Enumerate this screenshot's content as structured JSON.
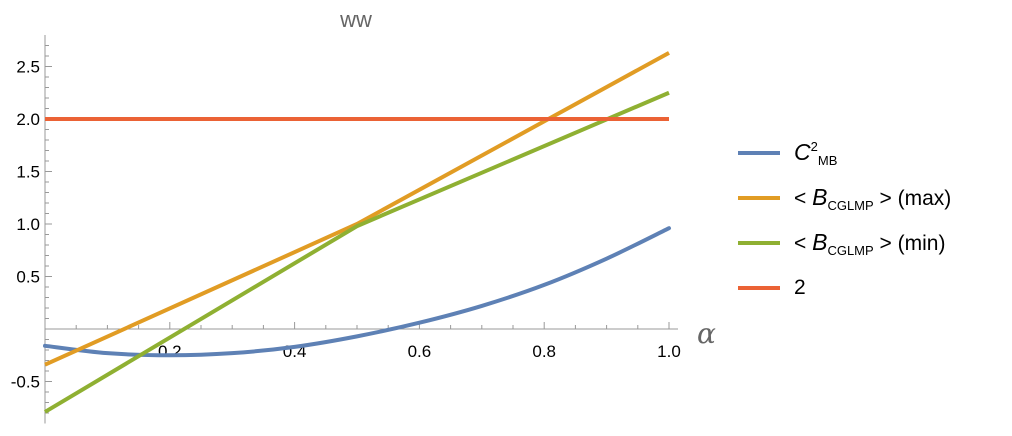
{
  "chart_data": {
    "type": "line",
    "title": "ww",
    "xlabel": "α",
    "ylabel": "",
    "xlim": [
      0,
      1.0
    ],
    "ylim": [
      -0.9,
      2.8
    ],
    "x_ticks": [
      "0.2",
      "0.4",
      "0.6",
      "0.8",
      "1.0"
    ],
    "y_ticks": [
      "-0.5",
      "0.5",
      "1.0",
      "1.5",
      "2.0",
      "2.5"
    ],
    "x_tick_values": [
      0.2,
      0.4,
      0.6,
      0.8,
      1.0
    ],
    "y_tick_values": [
      -0.5,
      0.5,
      1.0,
      1.5,
      2.0,
      2.5
    ],
    "series": [
      {
        "name": "C²MB",
        "color": "#5E81B5",
        "x": [
          0,
          0.1,
          0.2,
          0.3,
          0.4,
          0.5,
          0.6,
          0.7,
          0.8,
          0.9,
          1.0
        ],
        "y": [
          -0.16,
          -0.23,
          -0.25,
          -0.23,
          -0.17,
          -0.07,
          0.06,
          0.22,
          0.42,
          0.67,
          0.96
        ]
      },
      {
        "name": "< BCGLMP > (max)",
        "color": "#E19C24",
        "x": [
          0,
          0.5,
          1.0
        ],
        "y": [
          -0.34,
          1.0,
          2.63
        ]
      },
      {
        "name": "< BCGLMP > (min)",
        "color": "#8FB032",
        "x": [
          0,
          0.5,
          1.0
        ],
        "y": [
          -0.79,
          0.98,
          2.25
        ]
      },
      {
        "name": "2",
        "color": "#EB6235",
        "x": [
          0,
          1.0
        ],
        "y": [
          2.0,
          2.0
        ]
      }
    ]
  },
  "legend": {
    "c2mb": {
      "base": "C",
      "sup": "2",
      "sub": "MB"
    },
    "max": {
      "pre": "< ",
      "base": "B",
      "sub": "CGLMP",
      "post": " > (max)"
    },
    "min": {
      "pre": "< ",
      "base": "B",
      "sub": "CGLMP",
      "post": " > (min)"
    },
    "const": {
      "label": "2"
    }
  }
}
